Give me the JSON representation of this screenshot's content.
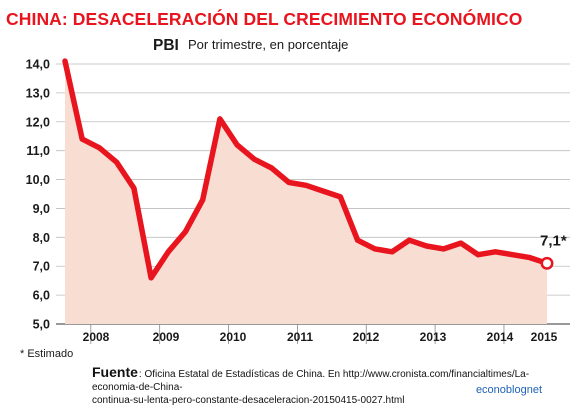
{
  "headline": "CHINA: DESACELERACIÓN DEL CRECIMIENTO ECONÓMICO",
  "source": {
    "label": "Fuente",
    "text": ": Oficina Estatal de Estadísticas de China. En http://www.cronista.com/financialtimes/La-economia-de-China-",
    "text_cont": "continua-su-lenta-pero-constante-desaceleracion-20150415-0027.html"
  },
  "brand": "econoblognet",
  "colors": {
    "headline": "#e8141e",
    "line": "#e8141e",
    "area": "#f8ddd3",
    "axis_text": "#1a1a1a",
    "grid": "#bdbdbd",
    "brand": "#1d63b6"
  },
  "chart_data": {
    "type": "line",
    "title": "PBI",
    "subtitle": "Por trimestre, en porcentaje",
    "xlabel": "",
    "ylabel": "",
    "ylim": [
      5.0,
      14.0
    ],
    "yticks": [
      "14,0",
      "13,0",
      "12,0",
      "11,0",
      "10,0",
      "9,0",
      "8,0",
      "7,0",
      "6,0",
      "5,0"
    ],
    "xticks": [
      "2008",
      "2009",
      "2010",
      "2011",
      "2012",
      "2013",
      "2014",
      "2015"
    ],
    "note": "* Estimado",
    "grid": true,
    "area_fill": true,
    "last_label": "7,1*",
    "series": [
      {
        "x": [
          "2008 T1",
          "2008 T2",
          "2008 T3",
          "2008 T4",
          "2009 T1",
          "2009 T2",
          "2009 T3",
          "2009 T4",
          "2010 T1",
          "2010 T2",
          "2010 T3",
          "2010 T4",
          "2011 T1",
          "2011 T2",
          "2011 T3",
          "2011 T4",
          "2012 T1",
          "2012 T2",
          "2012 T3",
          "2012 T4",
          "2013 T1",
          "2013 T2",
          "2013 T3",
          "2013 T4",
          "2014 T1",
          "2014 T2",
          "2014 T3",
          "2014 T4",
          "2015 T1"
        ],
        "values": [
          14.1,
          11.4,
          11.1,
          10.6,
          9.7,
          6.6,
          7.5,
          8.2,
          9.3,
          12.1,
          11.2,
          10.7,
          10.4,
          9.9,
          9.8,
          9.6,
          9.4,
          7.9,
          7.6,
          7.5,
          7.9,
          7.7,
          7.6,
          7.8,
          7.4,
          7.5,
          7.4,
          7.3,
          7.1
        ]
      }
    ]
  }
}
